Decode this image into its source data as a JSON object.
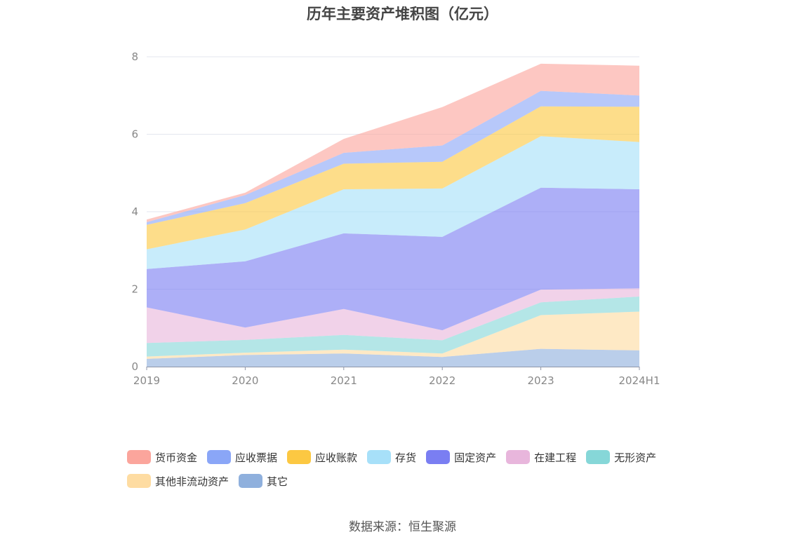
{
  "title": "历年主要资产堆积图（亿元）",
  "source": "数据来源：恒生聚源",
  "colors": {
    "货币资金": "#fba59c",
    "应收票据": "#8aa6f7",
    "应收账款": "#fcc842",
    "存货": "#a7e0f9",
    "固定资产": "#7a7ef2",
    "在建工程": "#e8b6dc",
    "无形资产": "#86d7d8",
    "其他非流动资产": "#fedca2",
    "其它": "#8fb0dd"
  },
  "chart_data": {
    "type": "area",
    "stacked": true,
    "title": "历年主要资产堆积图（亿元）",
    "xlabel": "",
    "ylabel": "",
    "categories": [
      "2019",
      "2020",
      "2021",
      "2022",
      "2023",
      "2024H1"
    ],
    "ylim": [
      0,
      8
    ],
    "yticks": [
      "0",
      "2",
      "4",
      "6",
      "8"
    ],
    "grid": true,
    "legend_position": "bottom",
    "series": [
      {
        "name": "其它",
        "values": [
          0.2,
          0.3,
          0.34,
          0.25,
          0.46,
          0.42
        ]
      },
      {
        "name": "其他非流动资产",
        "values": [
          0.06,
          0.06,
          0.1,
          0.09,
          0.87,
          1.0
        ]
      },
      {
        "name": "无形资产",
        "values": [
          0.35,
          0.33,
          0.38,
          0.34,
          0.33,
          0.39
        ]
      },
      {
        "name": "在建工程",
        "values": [
          0.92,
          0.32,
          0.67,
          0.26,
          0.33,
          0.21
        ]
      },
      {
        "name": "固定资产",
        "values": [
          0.99,
          1.71,
          1.95,
          2.41,
          2.63,
          2.56
        ]
      },
      {
        "name": "存货",
        "values": [
          0.51,
          0.82,
          1.14,
          1.25,
          1.33,
          1.22
        ]
      },
      {
        "name": "应收账款",
        "values": [
          0.63,
          0.68,
          0.66,
          0.69,
          0.77,
          0.91
        ]
      },
      {
        "name": "应收票据",
        "values": [
          0.07,
          0.21,
          0.28,
          0.42,
          0.4,
          0.29
        ]
      },
      {
        "name": "货币资金",
        "values": [
          0.07,
          0.06,
          0.36,
          0.99,
          0.7,
          0.77
        ]
      }
    ]
  },
  "legend": [
    {
      "name": "货币资金"
    },
    {
      "name": "应收票据"
    },
    {
      "name": "应收账款"
    },
    {
      "name": "存货"
    },
    {
      "name": "固定资产"
    },
    {
      "name": "在建工程"
    },
    {
      "name": "无形资产"
    },
    {
      "name": "其他非流动资产"
    },
    {
      "name": "其它"
    }
  ]
}
